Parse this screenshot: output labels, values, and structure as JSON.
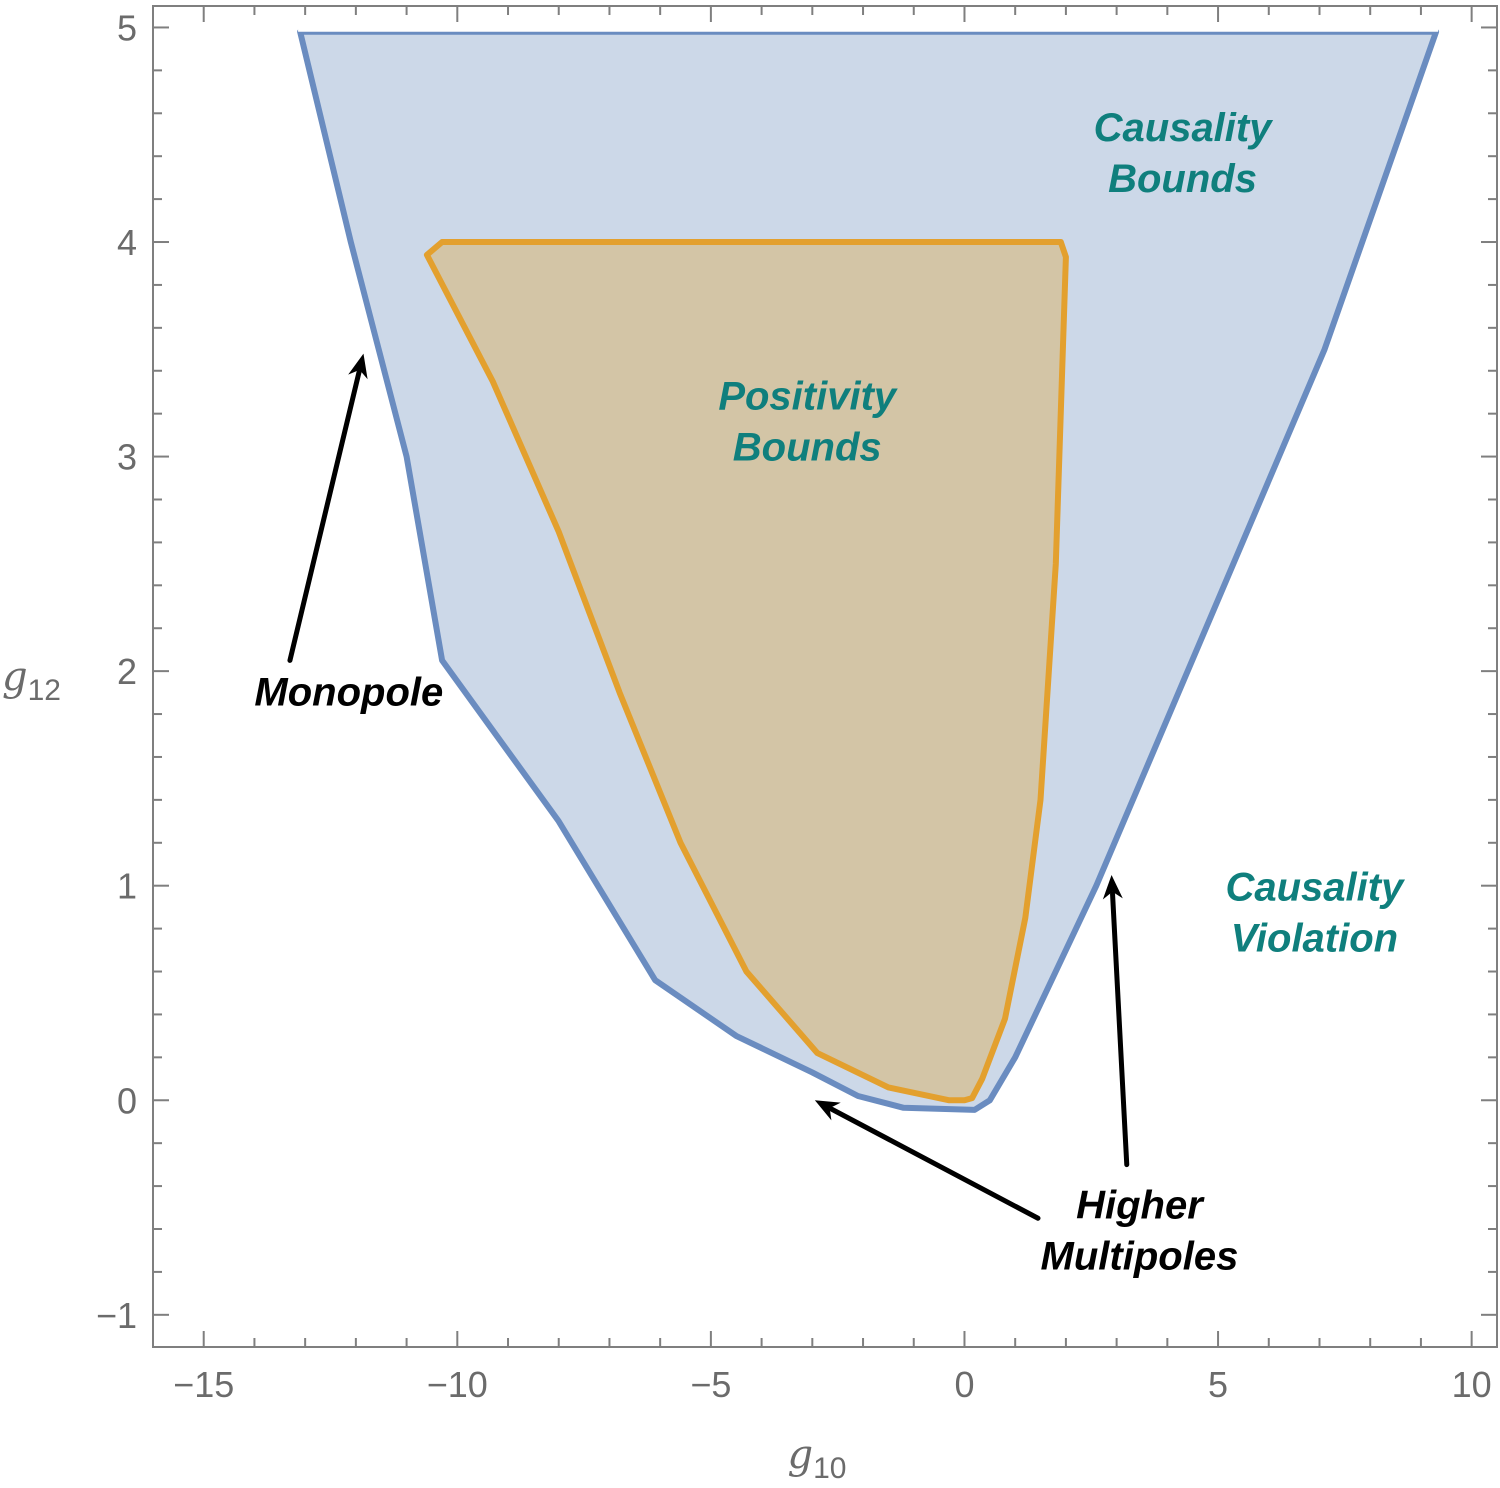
{
  "chart_data": {
    "type": "area",
    "xlabel": {
      "base": "g",
      "sub": "10"
    },
    "ylabel": {
      "base": "g",
      "sub": "12"
    },
    "xlim": [
      -16,
      10.5
    ],
    "ylim": [
      -1.15,
      5.1
    ],
    "x_ticks": [
      -15,
      -10,
      -5,
      0,
      5,
      10
    ],
    "x_tick_labels": [
      "−15",
      "−10",
      "−5",
      "0",
      "5",
      "10"
    ],
    "y_ticks": [
      -1,
      0,
      1,
      2,
      3,
      4,
      5
    ],
    "y_tick_labels": [
      "−1",
      "0",
      "1",
      "2",
      "3",
      "4",
      "5"
    ],
    "x_minor_step": 1,
    "y_minor_step": 0.2,
    "grid": false,
    "series": [
      {
        "key": "causality",
        "fill": "#ccd8e8",
        "stroke": "#6a8cc0",
        "points": [
          [
            -13.1,
            4.98
          ],
          [
            -12.1,
            4.0
          ],
          [
            -11.0,
            3.0
          ],
          [
            -10.3,
            2.05
          ],
          [
            -8.0,
            1.3
          ],
          [
            -6.1,
            0.56
          ],
          [
            -4.5,
            0.3
          ],
          [
            -3.0,
            0.13
          ],
          [
            -2.1,
            0.02
          ],
          [
            -1.2,
            -0.035
          ],
          [
            0.2,
            -0.045
          ],
          [
            0.5,
            0.0
          ],
          [
            1.0,
            0.2
          ],
          [
            2.6,
            1.0
          ],
          [
            5.3,
            2.5
          ],
          [
            7.1,
            3.5
          ],
          [
            9.3,
            4.98
          ]
        ]
      },
      {
        "key": "positivity",
        "fill": "#d3c5a6",
        "stroke": "#e3a02e",
        "points": [
          [
            -10.6,
            3.94
          ],
          [
            -10.3,
            4.0
          ],
          [
            1.9,
            4.0
          ],
          [
            2.0,
            3.93
          ],
          [
            1.8,
            2.5
          ],
          [
            1.5,
            1.4
          ],
          [
            1.2,
            0.85
          ],
          [
            0.8,
            0.38
          ],
          [
            0.35,
            0.1
          ],
          [
            0.15,
            0.01
          ],
          [
            0.0,
            0.0
          ],
          [
            -0.3,
            0.0
          ],
          [
            -1.5,
            0.06
          ],
          [
            -2.9,
            0.22
          ],
          [
            -4.3,
            0.6
          ],
          [
            -5.6,
            1.2
          ],
          [
            -6.8,
            1.9
          ],
          [
            -8.0,
            2.65
          ],
          [
            -9.3,
            3.35
          ],
          [
            -10.6,
            3.94
          ]
        ]
      }
    ],
    "annotations": [
      {
        "key": "causality_bounds",
        "lines": [
          "Causality",
          "Bounds"
        ],
        "x": 4.3,
        "y": 4.47,
        "style": "teal"
      },
      {
        "key": "positivity_bounds",
        "lines": [
          "Positivity",
          "Bounds"
        ],
        "x": -3.1,
        "y": 3.22,
        "style": "teal"
      },
      {
        "key": "causality_violation",
        "lines": [
          "Causality",
          "Violation"
        ],
        "x": 6.9,
        "y": 0.93,
        "style": "teal"
      },
      {
        "key": "monopole",
        "lines": [
          "Monopole"
        ],
        "x": -14.0,
        "y": 1.84,
        "style": "black"
      },
      {
        "key": "higher_multipoles",
        "lines": [
          "Higher",
          "Multipoles"
        ],
        "x": 3.45,
        "y": -0.55,
        "style": "black"
      }
    ],
    "arrows": [
      {
        "key": "monopole-arrow",
        "from": [
          -13.3,
          2.05
        ],
        "to": [
          -11.85,
          3.48
        ]
      },
      {
        "key": "multipoles-arrow-left",
        "from": [
          1.45,
          -0.55
        ],
        "to": [
          -2.95,
          0.0
        ]
      },
      {
        "key": "multipoles-arrow-up",
        "from": [
          3.2,
          -0.3
        ],
        "to": [
          2.9,
          1.05
        ]
      }
    ]
  }
}
